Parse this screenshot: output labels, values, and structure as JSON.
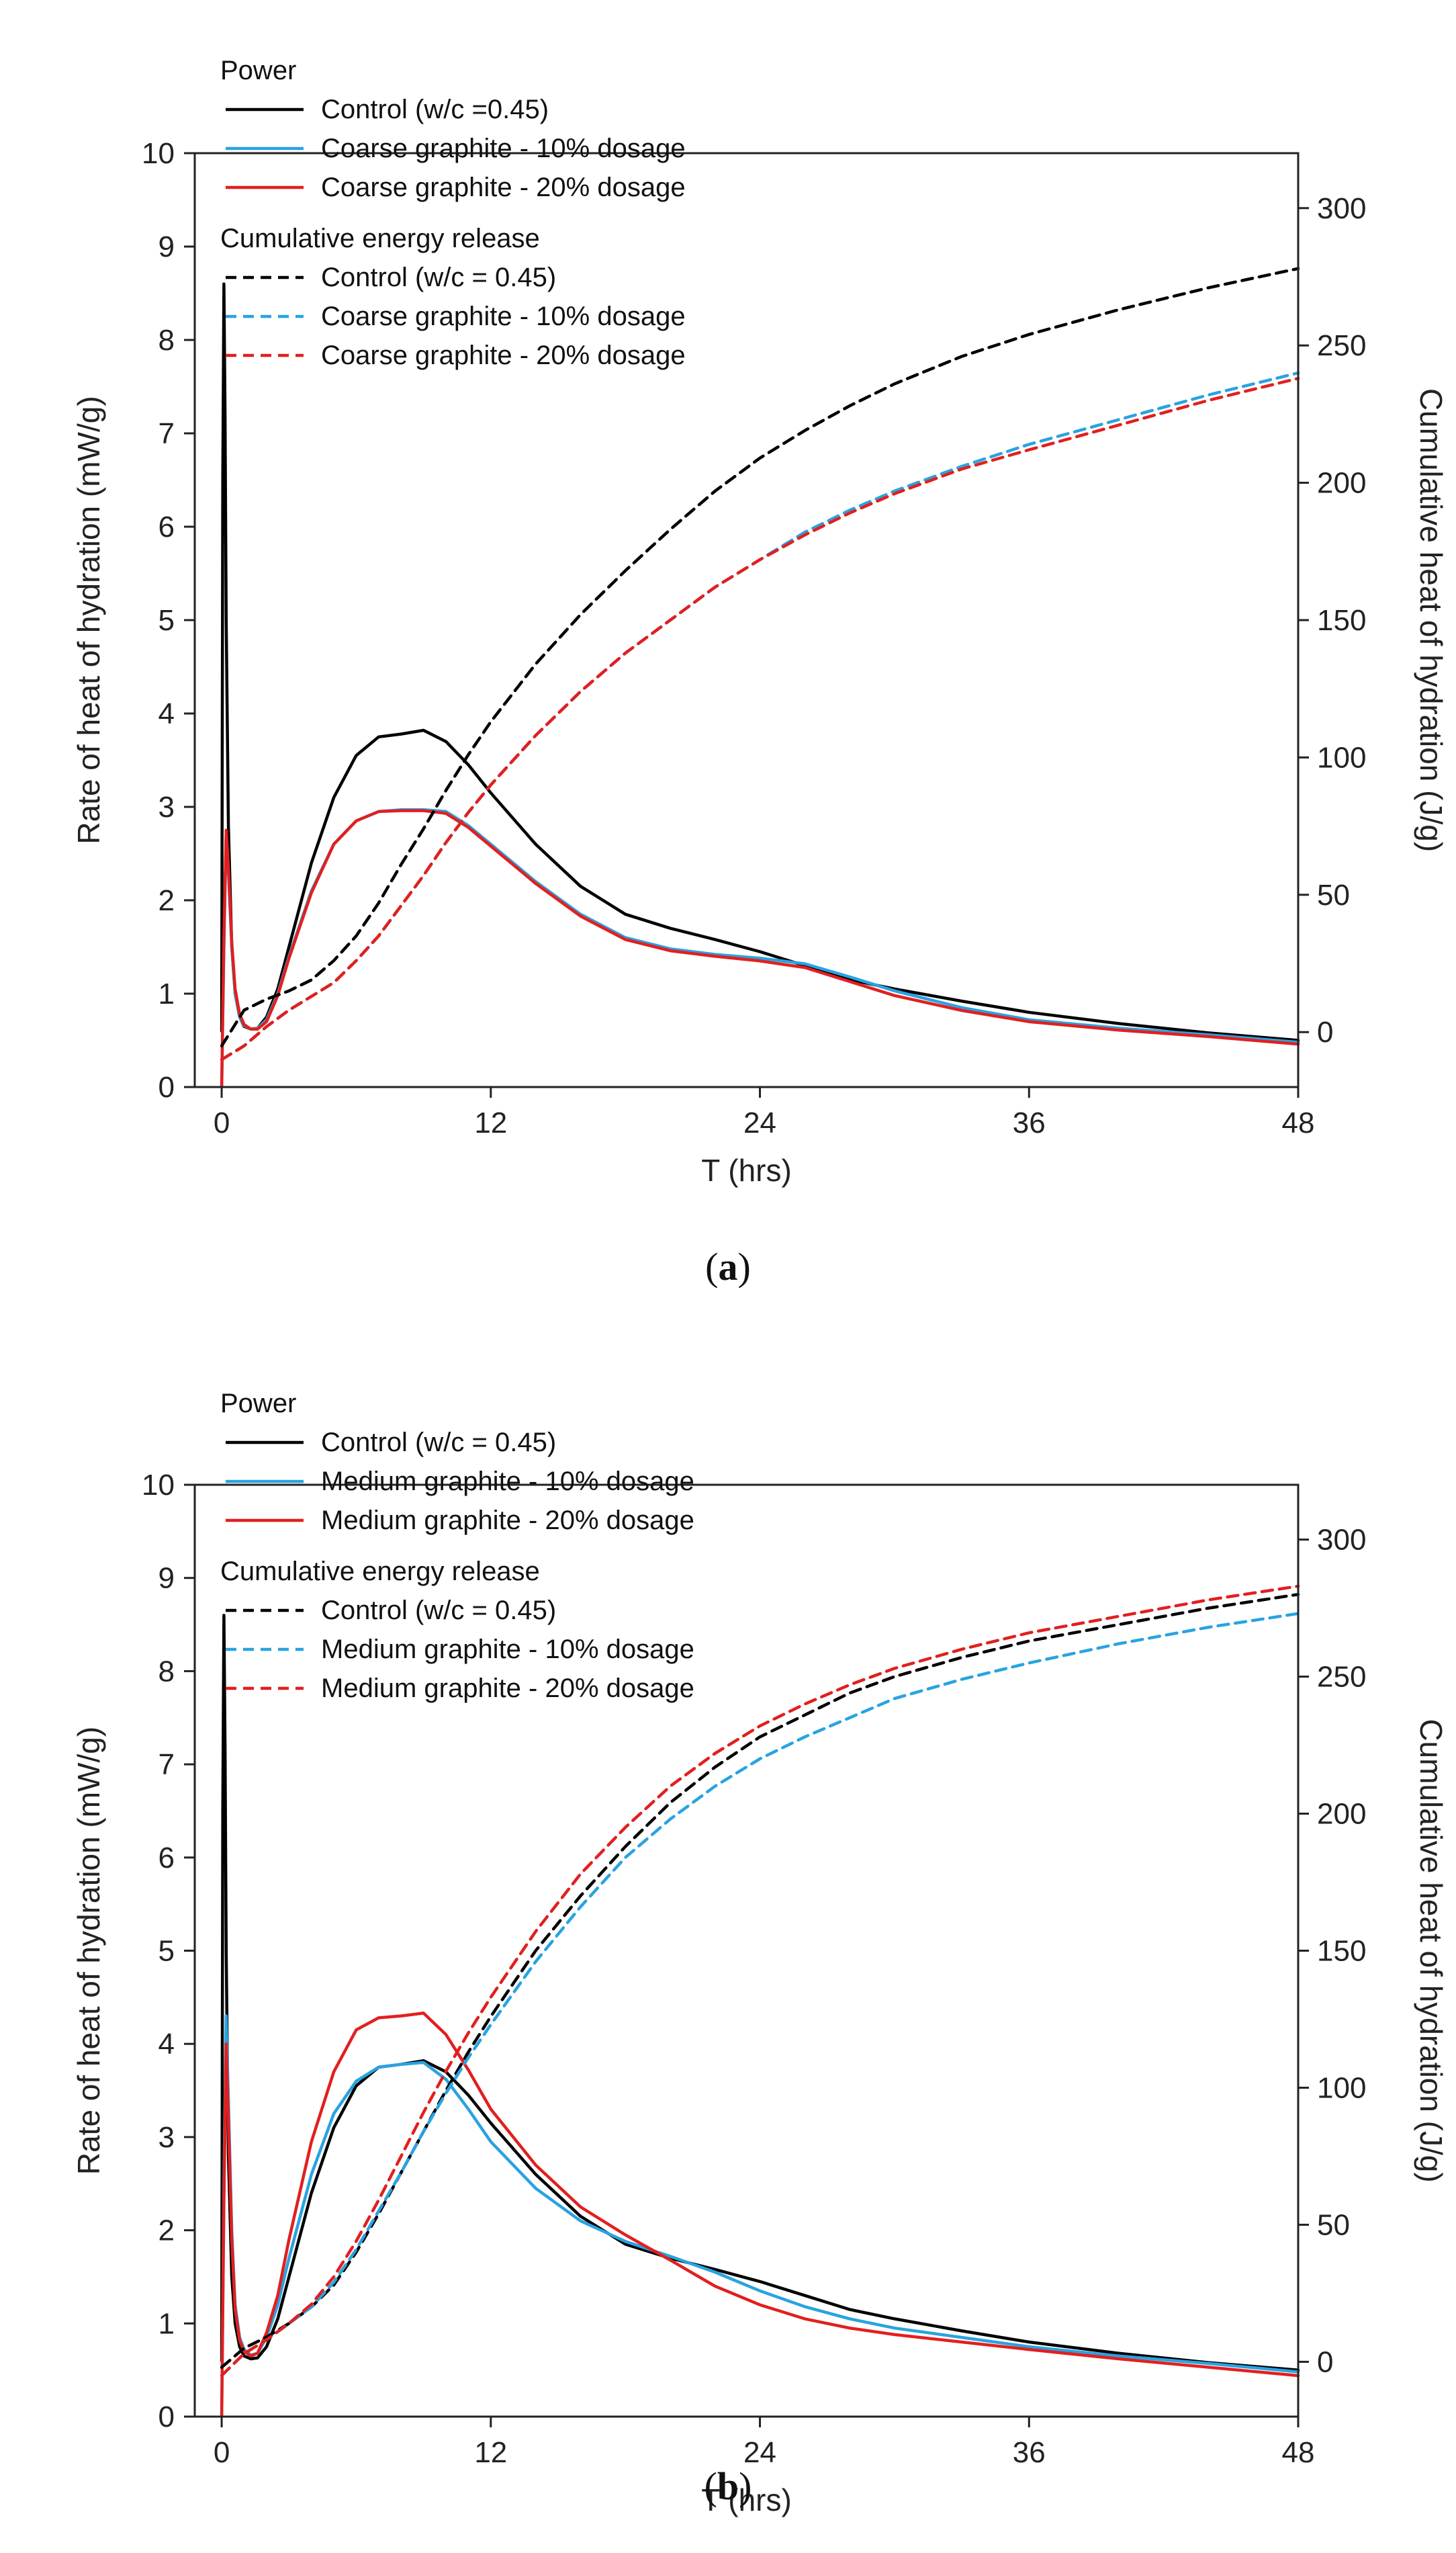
{
  "chart_data": [
    {
      "type": "line",
      "panel_label": "a",
      "xlabel": "T (hrs)",
      "ylabel": "Rate of heat of hydration (mW/g)",
      "y2label": "Cumulative heat of hydration (J/g)",
      "xlim": [
        -1.2,
        48
      ],
      "ylim": [
        0,
        10
      ],
      "y2lim": [
        -20,
        320
      ],
      "x_ticks": [
        0,
        12,
        24,
        36,
        48
      ],
      "y_ticks": [
        0,
        1,
        2,
        3,
        4,
        5,
        6,
        7,
        8,
        9,
        10
      ],
      "y2_ticks": [
        0,
        50,
        100,
        150,
        200,
        250,
        300
      ],
      "legend_groups": [
        {
          "heading": "Power",
          "entries": [
            {
              "label": "Control (w/c =0.45)",
              "color": "#000000",
              "dash": false
            },
            {
              "label": "Coarse graphite - 10% dosage",
              "color": "#29a3e0",
              "dash": false
            },
            {
              "label": "Coarse graphite - 20% dosage",
              "color": "#e21f1f",
              "dash": false
            }
          ]
        },
        {
          "heading": "Cumulative energy release",
          "entries": [
            {
              "label": "Control (w/c = 0.45)",
              "color": "#000000",
              "dash": true
            },
            {
              "label": "Coarse graphite - 10% dosage",
              "color": "#29a3e0",
              "dash": true
            },
            {
              "label": "Coarse graphite - 20% dosage",
              "color": "#e21f1f",
              "dash": true
            }
          ]
        }
      ],
      "series": [
        {
          "name": "Control (w/c =0.45)",
          "kind": "power",
          "axis": "left",
          "color": "#000000",
          "x": [
            0,
            0.05,
            0.1,
            0.15,
            0.2,
            0.3,
            0.45,
            0.6,
            0.8,
            1.0,
            1.3,
            1.6,
            2.0,
            2.5,
            3,
            4,
            5,
            6,
            7,
            8,
            9,
            10,
            11,
            12,
            14,
            16,
            18,
            20,
            22,
            24,
            26,
            28,
            30,
            33,
            36,
            40,
            44,
            48
          ],
          "y": [
            0.6,
            6.5,
            8.6,
            7.2,
            5.0,
            2.8,
            1.5,
            1.0,
            0.75,
            0.65,
            0.62,
            0.63,
            0.75,
            1.05,
            1.5,
            2.4,
            3.1,
            3.55,
            3.75,
            3.78,
            3.82,
            3.7,
            3.45,
            3.15,
            2.6,
            2.15,
            1.85,
            1.7,
            1.58,
            1.45,
            1.3,
            1.15,
            1.05,
            0.92,
            0.8,
            0.68,
            0.58,
            0.5
          ]
        },
        {
          "name": "Coarse graphite - 10% dosage",
          "kind": "power",
          "axis": "left",
          "color": "#29a3e0",
          "x": [
            0,
            0.1,
            0.2,
            0.3,
            0.45,
            0.6,
            0.8,
            1.0,
            1.3,
            1.6,
            2.0,
            2.5,
            3,
            4,
            5,
            6,
            7,
            8,
            9,
            10,
            11,
            12,
            14,
            16,
            18,
            20,
            22,
            24,
            26,
            28,
            30,
            33,
            36,
            40,
            44,
            48
          ],
          "y": [
            0.0,
            1.5,
            2.7,
            2.3,
            1.5,
            1.0,
            0.75,
            0.66,
            0.62,
            0.63,
            0.72,
            1.0,
            1.4,
            2.1,
            2.6,
            2.85,
            2.95,
            2.97,
            2.97,
            2.95,
            2.8,
            2.6,
            2.2,
            1.85,
            1.6,
            1.48,
            1.42,
            1.38,
            1.32,
            1.18,
            1.03,
            0.85,
            0.72,
            0.63,
            0.56,
            0.48
          ]
        },
        {
          "name": "Coarse graphite - 20% dosage",
          "kind": "power",
          "axis": "left",
          "color": "#e21f1f",
          "x": [
            0,
            0.1,
            0.2,
            0.3,
            0.45,
            0.6,
            0.8,
            1.0,
            1.3,
            1.6,
            2.0,
            2.5,
            3,
            4,
            5,
            6,
            7,
            8,
            9,
            10,
            11,
            12,
            14,
            16,
            18,
            20,
            22,
            24,
            26,
            28,
            30,
            33,
            36,
            40,
            44,
            48
          ],
          "y": [
            0.0,
            1.6,
            2.75,
            2.35,
            1.55,
            1.05,
            0.78,
            0.67,
            0.62,
            0.62,
            0.7,
            0.98,
            1.38,
            2.08,
            2.6,
            2.85,
            2.95,
            2.96,
            2.96,
            2.93,
            2.78,
            2.58,
            2.18,
            1.83,
            1.58,
            1.46,
            1.4,
            1.35,
            1.28,
            1.13,
            0.98,
            0.82,
            0.7,
            0.61,
            0.54,
            0.46
          ]
        },
        {
          "name": "Control (w/c = 0.45)",
          "kind": "cumulative",
          "axis": "right",
          "color": "#000000",
          "x": [
            0,
            1,
            2,
            3,
            4,
            5,
            6,
            7,
            8,
            9,
            10,
            11,
            12,
            14,
            16,
            18,
            20,
            22,
            24,
            26,
            28,
            30,
            33,
            36,
            40,
            44,
            48
          ],
          "y": [
            -5,
            8,
            12,
            15,
            19,
            26,
            35,
            47,
            61,
            74,
            88,
            101,
            113,
            134,
            152,
            168,
            183,
            197,
            209,
            219,
            228,
            236,
            246,
            254,
            263,
            271,
            278
          ]
        },
        {
          "name": "Coarse graphite - 10% dosage",
          "kind": "cumulative",
          "axis": "right",
          "color": "#29a3e0",
          "x": [
            0,
            1,
            2,
            3,
            4,
            5,
            6,
            7,
            8,
            9,
            10,
            11,
            12,
            14,
            16,
            18,
            20,
            22,
            24,
            26,
            28,
            30,
            33,
            36,
            40,
            44,
            48
          ],
          "y": [
            -10,
            -5,
            2,
            8,
            13,
            18,
            26,
            35,
            46,
            57,
            69,
            80,
            90,
            108,
            124,
            138,
            150,
            162,
            172,
            182,
            190,
            197,
            206,
            214,
            223,
            232,
            240
          ]
        },
        {
          "name": "Coarse graphite - 20% dosage",
          "kind": "cumulative",
          "axis": "right",
          "color": "#e21f1f",
          "x": [
            0,
            1,
            2,
            3,
            4,
            5,
            6,
            7,
            8,
            9,
            10,
            11,
            12,
            14,
            16,
            18,
            20,
            22,
            24,
            26,
            28,
            30,
            33,
            36,
            40,
            44,
            48
          ],
          "y": [
            -10,
            -5,
            2,
            8,
            13,
            18,
            26,
            35,
            46,
            57,
            69,
            80,
            90,
            108,
            124,
            138,
            150,
            162,
            172,
            181,
            189,
            196,
            205,
            212,
            221,
            230,
            238
          ]
        }
      ]
    },
    {
      "type": "line",
      "panel_label": "b",
      "xlabel": "T (hrs)",
      "ylabel": "Rate of heat of hydration (mW/g)",
      "y2label": "Cumulative heat of hydration (J/g)",
      "xlim": [
        -1.2,
        48
      ],
      "ylim": [
        0,
        10
      ],
      "y2lim": [
        -20,
        320
      ],
      "x_ticks": [
        0,
        12,
        24,
        36,
        48
      ],
      "y_ticks": [
        0,
        1,
        2,
        3,
        4,
        5,
        6,
        7,
        8,
        9,
        10
      ],
      "y2_ticks": [
        0,
        50,
        100,
        150,
        200,
        250,
        300
      ],
      "legend_groups": [
        {
          "heading": "Power",
          "entries": [
            {
              "label": "Control (w/c = 0.45)",
              "color": "#000000",
              "dash": false
            },
            {
              "label": "Medium graphite - 10% dosage",
              "color": "#29a3e0",
              "dash": false
            },
            {
              "label": "Medium graphite - 20% dosage",
              "color": "#e21f1f",
              "dash": false
            }
          ]
        },
        {
          "heading": "Cumulative energy release",
          "entries": [
            {
              "label": "Control (w/c = 0.45)",
              "color": "#000000",
              "dash": true
            },
            {
              "label": "Medium graphite - 10% dosage",
              "color": "#29a3e0",
              "dash": true
            },
            {
              "label": "Medium graphite - 20% dosage",
              "color": "#e21f1f",
              "dash": true
            }
          ]
        }
      ],
      "series": [
        {
          "name": "Control (w/c = 0.45)",
          "kind": "power",
          "axis": "left",
          "color": "#000000",
          "x": [
            0,
            0.05,
            0.1,
            0.15,
            0.2,
            0.3,
            0.45,
            0.6,
            0.8,
            1.0,
            1.3,
            1.6,
            2.0,
            2.5,
            3,
            4,
            5,
            6,
            7,
            8,
            9,
            10,
            11,
            12,
            14,
            16,
            18,
            20,
            22,
            24,
            26,
            28,
            30,
            33,
            36,
            40,
            44,
            48
          ],
          "y": [
            0.6,
            6.5,
            8.6,
            7.2,
            5.0,
            2.8,
            1.5,
            1.0,
            0.75,
            0.65,
            0.62,
            0.63,
            0.75,
            1.05,
            1.5,
            2.4,
            3.1,
            3.55,
            3.75,
            3.78,
            3.82,
            3.7,
            3.45,
            3.15,
            2.6,
            2.15,
            1.85,
            1.7,
            1.58,
            1.45,
            1.3,
            1.15,
            1.05,
            0.92,
            0.8,
            0.68,
            0.58,
            0.5
          ]
        },
        {
          "name": "Medium graphite - 10% dosage",
          "kind": "power",
          "axis": "left",
          "color": "#29a3e0",
          "x": [
            0,
            0.1,
            0.2,
            0.3,
            0.45,
            0.6,
            0.8,
            1.0,
            1.3,
            1.6,
            2.0,
            2.5,
            3,
            4,
            5,
            6,
            7,
            8,
            9,
            10,
            11,
            12,
            14,
            16,
            18,
            20,
            22,
            24,
            26,
            28,
            30,
            33,
            36,
            40,
            44,
            48
          ],
          "y": [
            0.0,
            2.5,
            4.3,
            3.4,
            2.0,
            1.2,
            0.85,
            0.72,
            0.66,
            0.68,
            0.85,
            1.2,
            1.7,
            2.6,
            3.25,
            3.6,
            3.75,
            3.78,
            3.8,
            3.62,
            3.3,
            2.95,
            2.45,
            2.1,
            1.88,
            1.72,
            1.55,
            1.35,
            1.18,
            1.05,
            0.95,
            0.85,
            0.75,
            0.65,
            0.57,
            0.48
          ]
        },
        {
          "name": "Medium graphite - 20% dosage",
          "kind": "power",
          "axis": "left",
          "color": "#e21f1f",
          "x": [
            0,
            0.1,
            0.2,
            0.3,
            0.45,
            0.6,
            0.8,
            1.0,
            1.3,
            1.6,
            2.0,
            2.5,
            3,
            4,
            5,
            6,
            7,
            8,
            9,
            10,
            11,
            12,
            14,
            16,
            18,
            20,
            22,
            24,
            26,
            28,
            30,
            33,
            36,
            40,
            44,
            48
          ],
          "y": [
            0.0,
            2.3,
            4.0,
            3.2,
            1.9,
            1.15,
            0.82,
            0.7,
            0.65,
            0.68,
            0.9,
            1.3,
            1.9,
            2.95,
            3.7,
            4.15,
            4.28,
            4.3,
            4.33,
            4.1,
            3.72,
            3.3,
            2.7,
            2.25,
            1.95,
            1.68,
            1.4,
            1.2,
            1.05,
            0.95,
            0.88,
            0.8,
            0.72,
            0.62,
            0.53,
            0.44
          ]
        },
        {
          "name": "Control (w/c = 0.45)",
          "kind": "cumulative",
          "axis": "right",
          "color": "#000000",
          "x": [
            0,
            1,
            2,
            3,
            4,
            5,
            6,
            7,
            8,
            9,
            10,
            11,
            12,
            14,
            16,
            18,
            20,
            22,
            24,
            26,
            28,
            30,
            33,
            36,
            40,
            44,
            48
          ],
          "y": [
            -2,
            5,
            9,
            14,
            20,
            28,
            40,
            54,
            69,
            84,
            99,
            113,
            126,
            150,
            170,
            188,
            204,
            217,
            228,
            236,
            244,
            250,
            257,
            263,
            269,
            275,
            280
          ]
        },
        {
          "name": "Medium graphite - 10% dosage",
          "kind": "cumulative",
          "axis": "right",
          "color": "#29a3e0",
          "x": [
            0,
            1,
            2,
            3,
            4,
            5,
            6,
            7,
            8,
            9,
            10,
            11,
            12,
            14,
            16,
            18,
            20,
            22,
            24,
            26,
            28,
            30,
            33,
            36,
            40,
            44,
            48
          ],
          "y": [
            -5,
            3,
            8,
            14,
            20,
            29,
            41,
            55,
            69,
            84,
            98,
            111,
            123,
            146,
            166,
            184,
            198,
            210,
            220,
            228,
            235,
            242,
            249,
            255,
            262,
            268,
            273
          ]
        },
        {
          "name": "Medium graphite - 20% dosage",
          "kind": "cumulative",
          "axis": "right",
          "color": "#e21f1f",
          "x": [
            0,
            1,
            2,
            3,
            4,
            5,
            6,
            7,
            8,
            9,
            10,
            11,
            12,
            14,
            16,
            18,
            20,
            22,
            24,
            26,
            28,
            30,
            33,
            36,
            40,
            44,
            48
          ],
          "y": [
            -5,
            3,
            8,
            14,
            21,
            31,
            44,
            59,
            75,
            91,
            106,
            120,
            133,
            157,
            178,
            195,
            210,
            222,
            232,
            240,
            247,
            253,
            260,
            266,
            272,
            278,
            283
          ]
        }
      ]
    }
  ]
}
